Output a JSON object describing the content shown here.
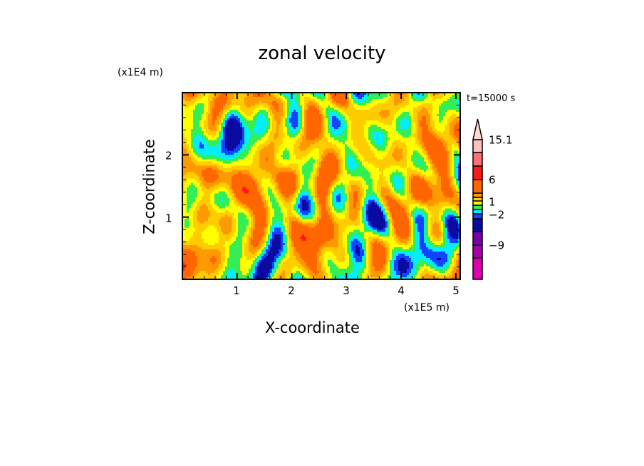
{
  "chart_data": {
    "type": "heatmap",
    "title": "zonal velocity",
    "xlabel": "X-coordinate",
    "ylabel": "Z-coordinate",
    "x_unit": "(x1E5 m)",
    "y_unit": "(x1E4 m)",
    "xlim": [
      0,
      5.08
    ],
    "ylim": [
      0,
      3.0
    ],
    "x_ticks": [
      "1",
      "2",
      "3",
      "4",
      "5"
    ],
    "x_tick_values": [
      1,
      2,
      3,
      4,
      5
    ],
    "y_ticks": [
      "1",
      "2"
    ],
    "y_tick_values": [
      1,
      2
    ],
    "annotation": "t=15000 s",
    "colorbar": {
      "labels": [
        "15.1",
        "6",
        "1",
        "−2",
        "−9"
      ],
      "label_values": [
        15.1,
        6,
        1,
        -2,
        -9
      ],
      "boundaries": [
        -15,
        -12,
        -9,
        -6,
        -3,
        -2,
        -1,
        0,
        1,
        2,
        3,
        6,
        9,
        12,
        15.1
      ],
      "colors": [
        "#e000b0",
        "#aa00aa",
        "#7700aa",
        "#0a0aa0",
        "#1144ff",
        "#00eeff",
        "#33ee55",
        "#ffff00",
        "#ffcc00",
        "#ff9900",
        "#ff6600",
        "#ff1a1a",
        "#ff7070",
        "#ffc0c0"
      ],
      "extend_color": "#ffd8d0"
    }
  }
}
